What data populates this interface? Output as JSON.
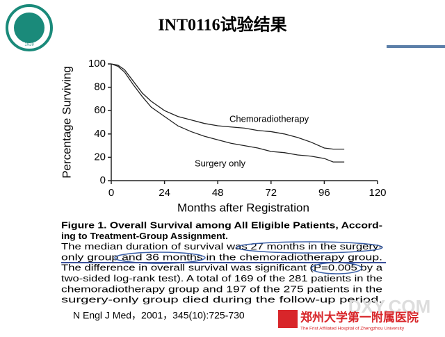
{
  "slide": {
    "title": "INT0116试验结果",
    "caption": [
      "Figure 1. Overall Survival among All Eligible Patients, Accord-",
      "ing to Treatment-Group Assignment.",
      "The median duration of survival was 27 months in the surgery-",
      "only group and 36 months in the chemoradiotherapy group.",
      "The difference in overall survival was significant (P=0.005 by a",
      "two-sided log-rank test). A total of 169 of the 281 patients in the",
      "chemoradiotherapy group and 197 of the 275 patients in the",
      "surgery-only group died during the follow-up period."
    ],
    "citation": "N Engl J Med，2001，345(10):725-730",
    "watermark": "DXY.COM",
    "hospital_name": "郑州大学第一附属医院",
    "hospital_name_en": "The Frist Affiliated Hospital of Zhengzhou University",
    "logo_year": "1928"
  },
  "chart_data": {
    "type": "line",
    "x_label": "Months after Registration",
    "y_label": "Percentage Surviving",
    "x": [
      0,
      3,
      6,
      10,
      14,
      18,
      24,
      30,
      36,
      42,
      48,
      54,
      60,
      66,
      72,
      78,
      84,
      90,
      96,
      100,
      105
    ],
    "series": [
      {
        "name": "Chemoradiotherapy",
        "color": "#222222",
        "values": [
          100,
          99,
          95,
          85,
          75,
          68,
          60,
          55,
          52,
          49,
          47,
          46,
          45,
          43,
          42,
          40,
          37,
          33,
          28,
          27,
          27
        ]
      },
      {
        "name": "Surgery only",
        "color": "#222222",
        "values": [
          100,
          98,
          93,
          82,
          72,
          63,
          55,
          47,
          42,
          38,
          35,
          32,
          30,
          28,
          25,
          24,
          22,
          21,
          19,
          16,
          16
        ]
      }
    ],
    "xlim": [
      0,
      120
    ],
    "xticks": [
      0,
      24,
      48,
      72,
      96,
      120
    ],
    "ylim": [
      0,
      100
    ],
    "yticks": [
      0,
      20,
      40,
      60,
      80,
      100
    ]
  }
}
